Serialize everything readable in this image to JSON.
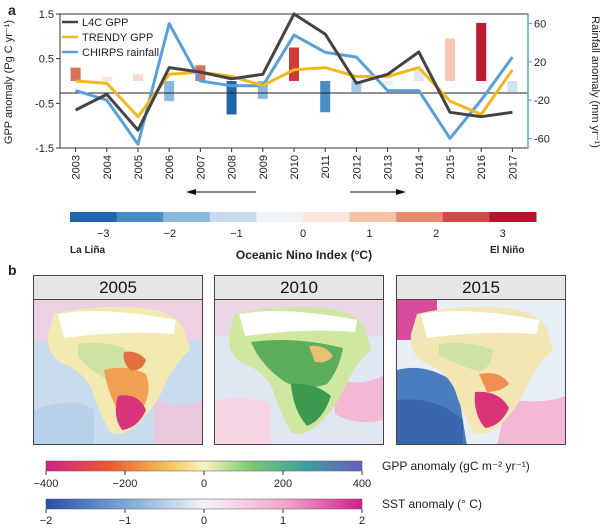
{
  "panel_a": {
    "letter": "a",
    "ylabel_left": "GPP anomaly (Pg C  yr⁻¹)",
    "ylabel_right": "Rainfall anomaly (mm yr⁻¹)",
    "legend": {
      "l4c": "L4C GPP",
      "trendy": "TRENDY GPP",
      "chirps": "CHIRPS rainfall"
    },
    "colors": {
      "l4c": "#444444",
      "trendy": "#f2b820",
      "chirps": "#5aa0d8"
    }
  },
  "chart_data": {
    "type": "line",
    "title": "",
    "x": [
      2003,
      2004,
      2005,
      2006,
      2007,
      2008,
      2009,
      2010,
      2011,
      2012,
      2013,
      2014,
      2015,
      2016,
      2017
    ],
    "xlabel": "",
    "ylabel": "GPP anomaly (Pg C yr-1)",
    "ylim": [
      -1.5,
      1.5
    ],
    "yticks": [
      "-1.5",
      "-0.5",
      "0.5",
      "1.5"
    ],
    "y2label": "Rainfall anomaly (mm yr-1)",
    "y2lim": [
      -70,
      70
    ],
    "y2ticks": [
      "-60",
      "-20",
      "20",
      "60"
    ],
    "series": [
      {
        "name": "L4C GPP",
        "axis": "left",
        "values": [
          -0.65,
          -0.3,
          -1.1,
          0.3,
          0.2,
          0.05,
          0.15,
          1.5,
          1.05,
          -0.05,
          0.15,
          0.65,
          -0.7,
          -0.8,
          -0.7
        ]
      },
      {
        "name": "TRENDY GPP",
        "axis": "left",
        "values": [
          0.0,
          -0.05,
          -0.8,
          0.15,
          0.2,
          0.1,
          -0.1,
          0.25,
          0.3,
          0.1,
          0.1,
          0.3,
          -0.45,
          -0.75,
          0.25
        ]
      },
      {
        "name": "CHIRPS rainfall",
        "axis": "right",
        "values": [
          -10,
          -20,
          -66,
          60,
          0,
          -5,
          -5,
          48,
          30,
          25,
          -10,
          -10,
          -60,
          -20,
          25
        ]
      }
    ],
    "oni_bars": {
      "values": [
        0.6,
        0.2,
        0.3,
        -0.9,
        0.7,
        -1.5,
        -0.8,
        1.5,
        -1.4,
        -0.5,
        -0.2,
        0.5,
        1.9,
        2.6,
        -0.5
      ],
      "colors": [
        "#d9705a",
        "#fce6dc",
        "#fadacc",
        "#88b8dc",
        "#d9705a",
        "#2166ac",
        "#88b8dc",
        "#d03a3a",
        "#4a8cc4",
        "#a6cce6",
        "#e3eef6",
        "#dde9f4",
        "#f8c8b2",
        "#c01a32",
        "#cfe2f0"
      ]
    }
  },
  "oni_colorbar": {
    "ticks": [
      "−3",
      "−2",
      "−1",
      "0",
      "1",
      "2",
      "3"
    ],
    "la_nina": "La Liña",
    "el_nino": "El Niño",
    "label": "Oceanic Nino Index (°C)",
    "colors": [
      "#2166ac",
      "#4a8cc4",
      "#88b8dc",
      "#c6dcee",
      "#eef4f8",
      "#fbe6dc",
      "#f6c2a6",
      "#e88a6e",
      "#d04848",
      "#b2182b"
    ]
  },
  "panel_b": {
    "letter": "b",
    "maps": [
      {
        "year": "2005"
      },
      {
        "year": "2010"
      },
      {
        "year": "2015"
      }
    ],
    "gpp_colorbar": {
      "label": "GPP anomaly (gC m⁻² yr⁻¹)",
      "ticks": [
        "−400",
        "−200",
        "0",
        "200",
        "400"
      ]
    },
    "sst_colorbar": {
      "label": "SST anomaly (° C)",
      "ticks": [
        "−2",
        "−1",
        "0",
        "1",
        "2"
      ]
    }
  }
}
